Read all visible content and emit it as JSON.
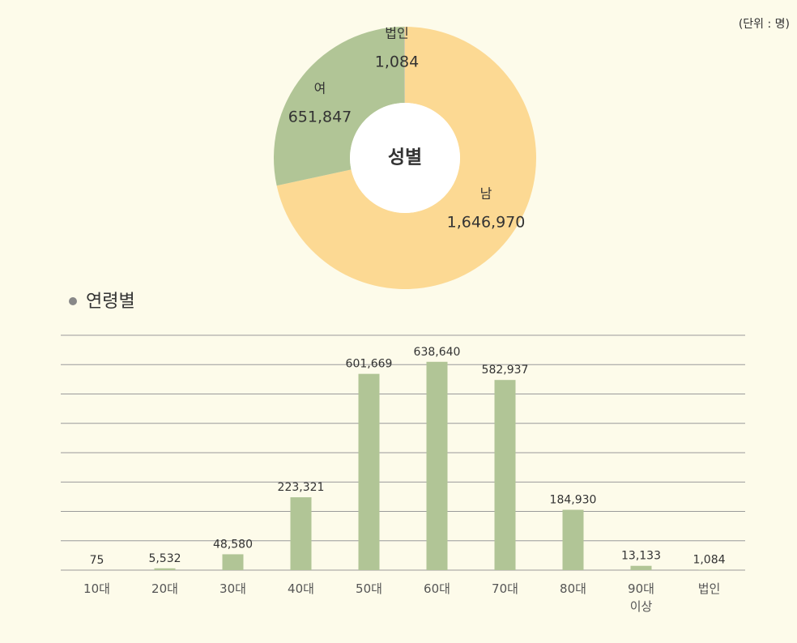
{
  "unit_note": "(단위 : 명)",
  "chart_data": [
    {
      "type": "donut",
      "title": "성별",
      "categories": [
        "남",
        "여",
        "법인"
      ],
      "values": [
        1646970,
        651847,
        1084
      ],
      "value_labels": [
        "1,646,970",
        "651,847",
        "1,084"
      ],
      "colors": [
        "#fcd993",
        "#b1c596",
        "#f6c3c0"
      ]
    },
    {
      "type": "bar",
      "title": "연령별",
      "categories": [
        "10대",
        "20대",
        "30대",
        "40대",
        "50대",
        "60대",
        "70대",
        "80대",
        "90대\n이상",
        "법인"
      ],
      "values": [
        75,
        5532,
        48580,
        223321,
        601669,
        638640,
        582937,
        184930,
        13133,
        1084
      ],
      "value_labels": [
        "75",
        "5,532",
        "48,580",
        "223,321",
        "601,669",
        "638,640",
        "582,937",
        "184,930",
        "13,133",
        "1,084"
      ],
      "color": "#b1c596",
      "ylim": [
        0,
        720000
      ],
      "yticks": [
        0,
        90000,
        180000,
        270000,
        360000,
        450000,
        540000,
        630000,
        720000
      ],
      "grid": true
    }
  ]
}
